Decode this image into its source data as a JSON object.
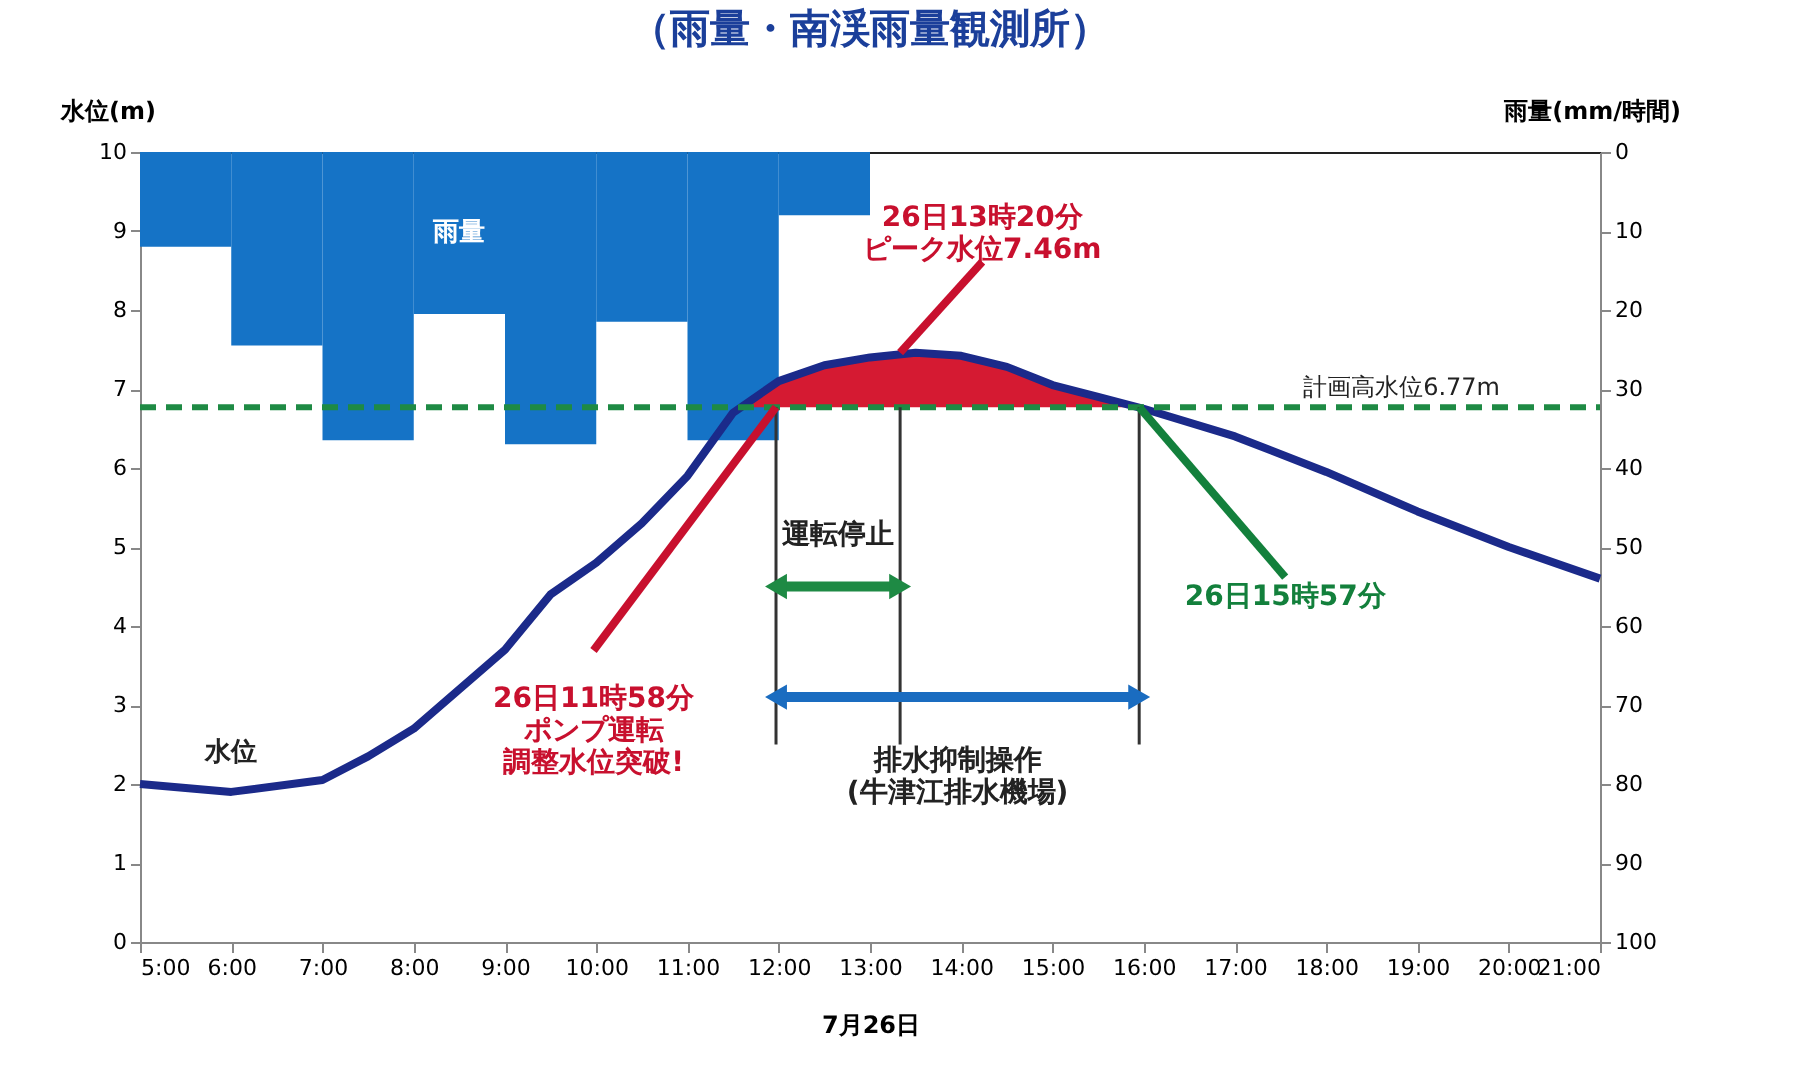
{
  "chart_data": {
    "type": "line",
    "title": "（雨量・南渓雨量観測所）",
    "xlabel": "7月26日",
    "ylabel": "水位(m)",
    "y2label": "雨量(mm/時間)",
    "xlim": [
      5,
      21
    ],
    "xticks": [
      {
        "value": 5,
        "label": "5:00"
      },
      {
        "value": 6,
        "label": "6:00"
      },
      {
        "value": 7,
        "label": "7:00"
      },
      {
        "value": 8,
        "label": "8:00"
      },
      {
        "value": 9,
        "label": "9:00"
      },
      {
        "value": 10,
        "label": "10:00"
      },
      {
        "value": 11,
        "label": "11:00"
      },
      {
        "value": 12,
        "label": "12:00"
      },
      {
        "value": 13,
        "label": "13:00"
      },
      {
        "value": 14,
        "label": "14:00"
      },
      {
        "value": 15,
        "label": "15:00"
      },
      {
        "value": 16,
        "label": "16:00"
      },
      {
        "value": 17,
        "label": "17:00"
      },
      {
        "value": 18,
        "label": "18:00"
      },
      {
        "value": 19,
        "label": "19:00"
      },
      {
        "value": 20,
        "label": "20:00"
      },
      {
        "value": 21,
        "label": "21:00"
      }
    ],
    "ylim": [
      0,
      10
    ],
    "yticks": [
      0,
      1,
      2,
      3,
      4,
      5,
      6,
      7,
      8,
      9,
      10
    ],
    "y2lim": [
      100,
      0
    ],
    "y2ticks": [
      0,
      10,
      20,
      30,
      40,
      50,
      60,
      70,
      80,
      90,
      100
    ],
    "grid": false,
    "series": [
      {
        "name": "雨量",
        "type": "bar",
        "axis": "y2",
        "color": "#1573c6",
        "x": [
          5.5,
          6.5,
          7.5,
          8.5,
          9.5,
          10.5,
          11.5,
          12.5
        ],
        "values": [
          12,
          24.5,
          36.5,
          20.5,
          37,
          21.5,
          36.5,
          8
        ]
      },
      {
        "type": "area",
        "color": "#d51a32",
        "x": [
          11.55,
          12,
          12.5,
          13,
          13.5,
          14,
          14.5,
          15,
          15.5,
          15.95
        ],
        "values": [
          6.77,
          7.1,
          7.3,
          7.4,
          7.46,
          7.42,
          7.28,
          7.05,
          6.9,
          6.77
        ]
      },
      {
        "name": "水位",
        "color": "#1b2a8a",
        "x": [
          5,
          6,
          7,
          7.5,
          8,
          8.5,
          9,
          9.5,
          10,
          10.5,
          11,
          11.5,
          12,
          12.5,
          13,
          13.5,
          14,
          14.5,
          15,
          15.5,
          16,
          17,
          18,
          19,
          20,
          21
        ],
        "values": [
          2.0,
          1.9,
          2.05,
          2.35,
          2.7,
          3.2,
          3.7,
          4.4,
          4.8,
          5.3,
          5.9,
          6.7,
          7.1,
          7.3,
          7.4,
          7.46,
          7.42,
          7.28,
          7.05,
          6.9,
          6.75,
          6.4,
          5.95,
          5.45,
          5.0,
          4.6
        ]
      }
    ],
    "ref_lines": [
      {
        "axis": "y",
        "value": 6.77,
        "label": "計画高水位6.77m",
        "color": "#1e8a44",
        "line_style": "dashed"
      },
      {
        "axis": "x",
        "value": 11.97,
        "color": "#333333"
      },
      {
        "axis": "x",
        "value": 13.33,
        "color": "#333333"
      },
      {
        "axis": "x",
        "value": 15.95,
        "color": "#333333"
      }
    ],
    "annotations": [
      "運転停止",
      "排水抑制操作(牛津江排水機場)",
      {
        "text": "26日13時20分ピーク水位7.46m",
        "x": 13.33,
        "y": 7.46
      },
      {
        "text": "26日11時58分ポンプ運転調整水位突破!",
        "x": 11.97,
        "y": 6.77
      },
      {
        "text": "26日15時57分",
        "x": 15.95,
        "y": 6.77
      }
    ]
  }
}
